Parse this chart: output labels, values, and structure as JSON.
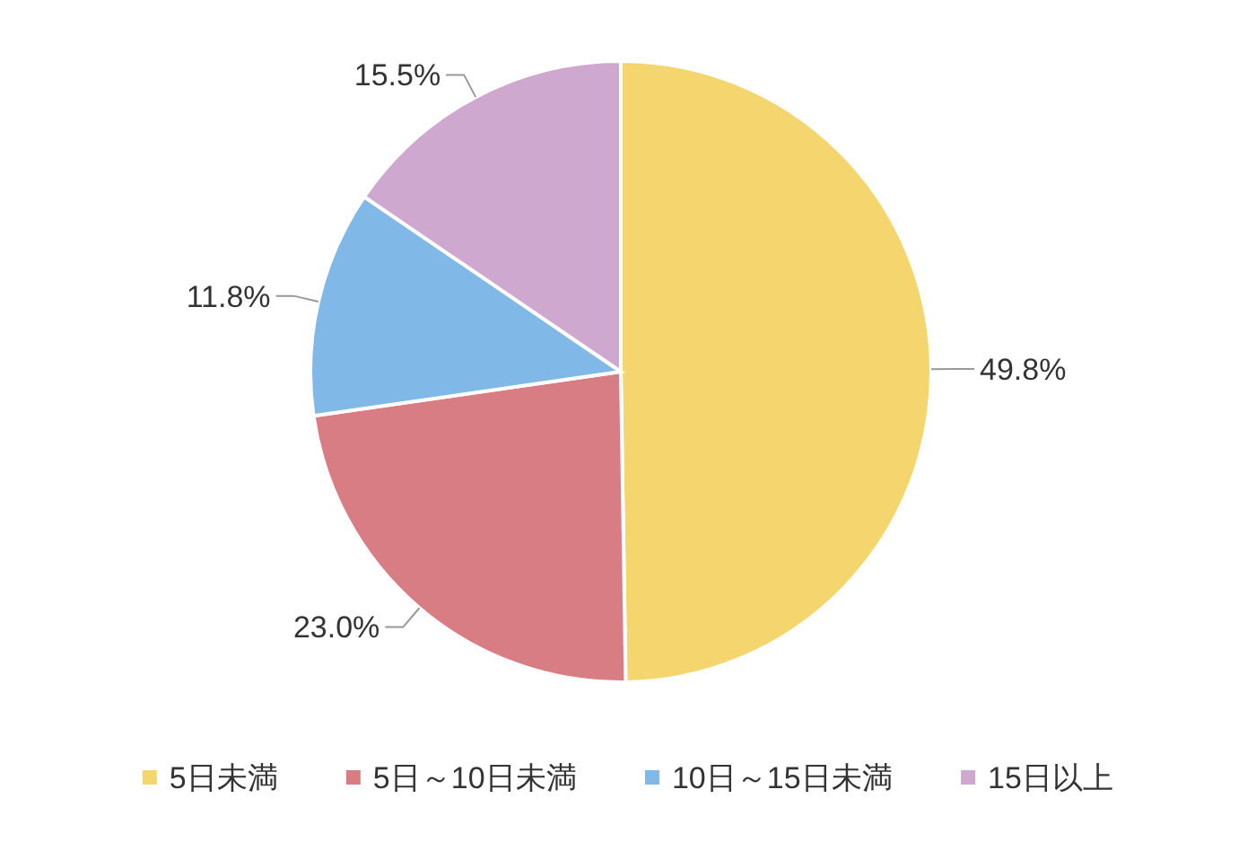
{
  "chart_data": {
    "type": "pie",
    "categories": [
      "5日未満",
      "5日～10日未満",
      "10日～15日未満",
      "15日以上"
    ],
    "values": [
      49.8,
      23.0,
      11.8,
      15.5
    ],
    "value_labels": [
      "49.8%",
      "23.0%",
      "11.8%",
      "15.5%"
    ],
    "colors": [
      "#f5d56e",
      "#d97d85",
      "#80b9e8",
      "#cfa8d0"
    ],
    "legend": "bottom"
  }
}
